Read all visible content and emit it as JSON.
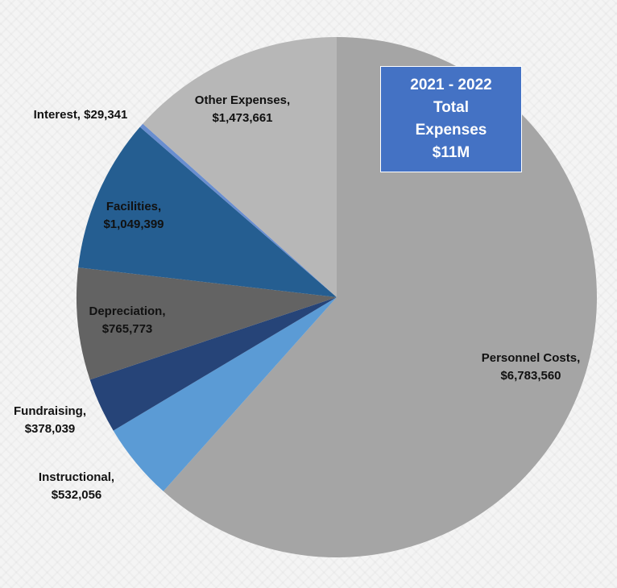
{
  "chart_data": {
    "type": "pie",
    "title_box": {
      "lines": [
        "2021 - 2022",
        "Total",
        "Expenses",
        "$11M"
      ],
      "color": "#4472c4"
    },
    "slices": [
      {
        "name": "Personnel Costs",
        "label": "Personnel Costs,",
        "value_label": "$6,783,560",
        "value": 6783560,
        "color": "#a5a5a5"
      },
      {
        "name": "Instructional",
        "label": "Instructional,",
        "value_label": "$532,056",
        "value": 532056,
        "color": "#5b9bd5"
      },
      {
        "name": "Fundraising",
        "label": "Fundraising,",
        "value_label": "$378,039",
        "value": 378039,
        "color": "#264478"
      },
      {
        "name": "Depreciation",
        "label": "Depreciation,",
        "value_label": "$765,773",
        "value": 765773,
        "color": "#636363"
      },
      {
        "name": "Facilities",
        "label": "Facilities,",
        "value_label": "$1,049,399",
        "value": 1049399,
        "color": "#255e91"
      },
      {
        "name": "Interest",
        "label": "Interest,",
        "value_label": "$29,341",
        "value": 29341,
        "color": "#698ed0"
      },
      {
        "name": "Other Expenses",
        "label": "Other Expenses,",
        "value_label": "$1,473,661",
        "value": 1473661,
        "color": "#b7b7b7"
      }
    ]
  }
}
